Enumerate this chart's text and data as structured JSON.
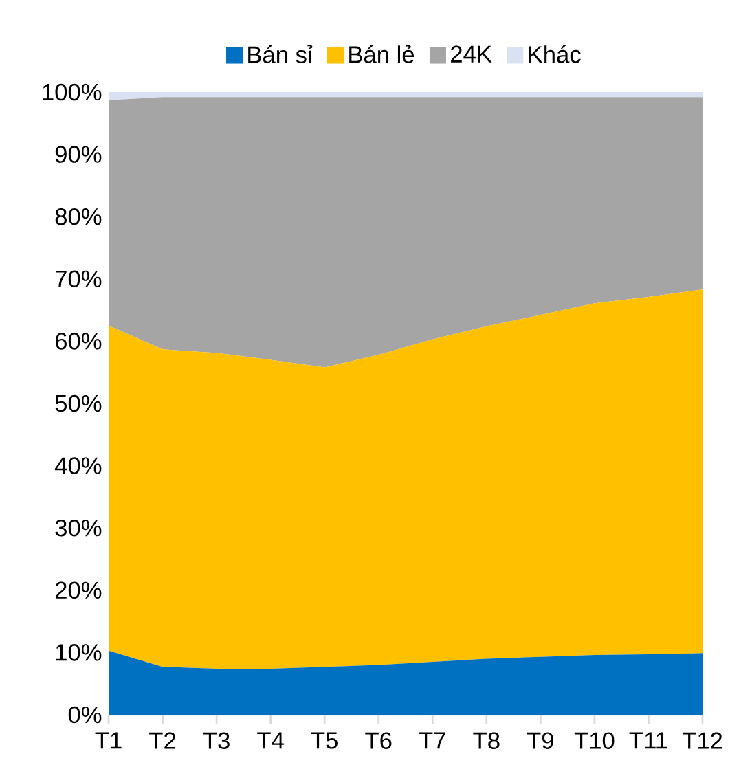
{
  "chart_data": {
    "type": "area",
    "stacked": true,
    "legend": "top",
    "grid": false,
    "categories": [
      "T1",
      "T2",
      "T3",
      "T4",
      "T5",
      "T6",
      "T7",
      "T8",
      "T9",
      "T10",
      "T11",
      "T12"
    ],
    "ylim": [
      0,
      100
    ],
    "yticks": [
      {
        "value": 0,
        "label": "0%"
      },
      {
        "value": 10,
        "label": "10%"
      },
      {
        "value": 20,
        "label": "20%"
      },
      {
        "value": 30,
        "label": "30%"
      },
      {
        "value": 40,
        "label": "40%"
      },
      {
        "value": 50,
        "label": "50%"
      },
      {
        "value": 60,
        "label": "60%"
      },
      {
        "value": 70,
        "label": "70%"
      },
      {
        "value": 80,
        "label": "80%"
      },
      {
        "value": 90,
        "label": "90%"
      },
      {
        "value": 100,
        "label": "100%"
      }
    ],
    "series": [
      {
        "name": "Bán sỉ",
        "color": "#0070c0",
        "values": [
          10.3,
          7.7,
          7.4,
          7.4,
          7.7,
          8.0,
          8.5,
          9.0,
          9.3,
          9.6,
          9.7,
          9.9
        ]
      },
      {
        "name": "Bán lẻ",
        "color": "#ffc000",
        "values": [
          52.2,
          51.0,
          50.7,
          49.6,
          48.1,
          49.8,
          51.8,
          53.4,
          54.9,
          56.5,
          57.4,
          58.4
        ]
      },
      {
        "name": "24K",
        "color": "#a5a5a5",
        "values": [
          36.2,
          40.5,
          41.1,
          42.2,
          43.4,
          41.4,
          38.9,
          36.8,
          35.0,
          33.1,
          32.1,
          30.9
        ]
      },
      {
        "name": "Khác",
        "color": "#d9e1f2",
        "values": [
          1.3,
          0.8,
          0.8,
          0.8,
          0.8,
          0.8,
          0.8,
          0.8,
          0.8,
          0.8,
          0.8,
          0.8
        ]
      }
    ]
  }
}
